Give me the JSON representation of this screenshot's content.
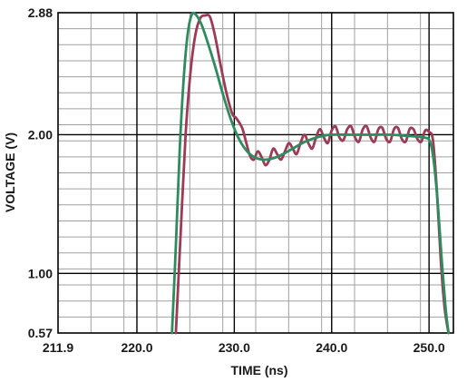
{
  "chart_data": {
    "type": "line",
    "xlabel": "TIME (ns)",
    "ylabel": "VOLTAGE (V)",
    "xlim": [
      211.9,
      252.5
    ],
    "ylim": [
      0.57,
      2.88
    ],
    "x_ticks": [
      {
        "value": 211.9,
        "label": "211.9"
      },
      {
        "value": 220.0,
        "label": "220.0"
      },
      {
        "value": 230.0,
        "label": "230.0"
      },
      {
        "value": 240.0,
        "label": "240.0"
      },
      {
        "value": 250.0,
        "label": "250.0"
      }
    ],
    "y_ticks": [
      {
        "value": 0.57,
        "label": "0.57"
      },
      {
        "value": 1.0,
        "label": "1.00"
      },
      {
        "value": 2.0,
        "label": "2.00"
      },
      {
        "value": 2.88,
        "label": "2.88"
      }
    ],
    "grid": true,
    "major_x_lines": [
      220.0,
      230.0,
      240.0,
      250.0
    ],
    "major_y_lines": [
      1.0,
      2.0
    ],
    "series": [
      {
        "color": "#2e8b5e",
        "x": [
          223.6,
          224.0,
          224.4,
          224.8,
          225.2,
          225.6,
          226.0,
          226.6,
          227.2,
          228.0,
          228.8,
          229.6,
          230.4,
          231.2,
          232.0,
          233.0,
          234.0,
          235.0,
          236.0,
          237.0,
          238.0,
          239.0,
          240.0,
          242.0,
          244.0,
          246.0,
          248.0,
          249.5,
          250.1,
          250.5,
          250.9,
          251.3,
          251.7,
          252.0
        ],
        "y": [
          0.57,
          1.2,
          1.9,
          2.4,
          2.72,
          2.86,
          2.87,
          2.8,
          2.68,
          2.5,
          2.3,
          2.12,
          1.98,
          1.89,
          1.84,
          1.82,
          1.83,
          1.86,
          1.9,
          1.94,
          1.97,
          1.99,
          2.0,
          2.0,
          2.0,
          2.0,
          1.99,
          1.98,
          1.95,
          1.8,
          1.5,
          1.1,
          0.75,
          0.57
        ]
      },
      {
        "color": "#9b3b55",
        "x": [
          224.0,
          224.5,
          225.0,
          225.5,
          226.0,
          226.5,
          227.0,
          227.5,
          228.0,
          228.6,
          229.2,
          229.8,
          230.2,
          230.8,
          231.2,
          231.6,
          232.0,
          232.4,
          232.8,
          233.2,
          233.6,
          234.0,
          234.4,
          234.8,
          235.2,
          235.6,
          236.0,
          236.4,
          236.8,
          237.2,
          237.6,
          238.0,
          238.4,
          238.8,
          239.2,
          239.6,
          240.0,
          240.4,
          240.8,
          241.2,
          241.6,
          242.0,
          242.4,
          242.8,
          243.2,
          243.6,
          244.0,
          244.4,
          244.8,
          245.2,
          245.6,
          246.0,
          246.4,
          246.8,
          247.2,
          247.6,
          248.0,
          248.4,
          248.8,
          249.2,
          249.6,
          250.0,
          250.4,
          250.8,
          251.2,
          251.6,
          252.0
        ],
        "y": [
          0.57,
          1.3,
          2.0,
          2.45,
          2.72,
          2.84,
          2.86,
          2.85,
          2.72,
          2.5,
          2.3,
          2.15,
          2.12,
          2.05,
          1.95,
          1.85,
          1.82,
          1.88,
          1.84,
          1.78,
          1.82,
          1.9,
          1.86,
          1.82,
          1.88,
          1.94,
          1.9,
          1.86,
          1.94,
          2.0,
          1.94,
          1.9,
          1.98,
          2.04,
          1.98,
          1.94,
          2.03,
          2.06,
          1.98,
          1.96,
          2.04,
          2.06,
          1.98,
          1.95,
          2.04,
          2.06,
          1.98,
          1.95,
          2.04,
          2.05,
          1.97,
          1.95,
          2.04,
          2.05,
          1.97,
          1.95,
          2.04,
          2.04,
          1.97,
          1.95,
          2.03,
          2.02,
          1.96,
          1.6,
          1.1,
          0.75,
          0.57
        ]
      }
    ]
  }
}
